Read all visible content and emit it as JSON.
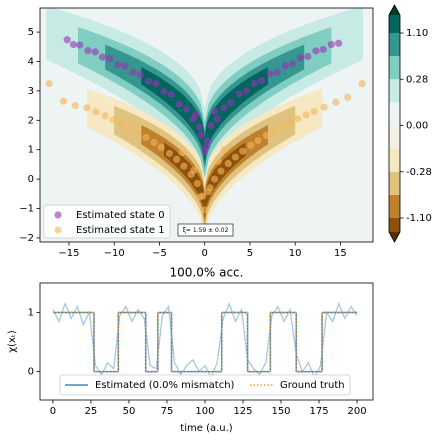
{
  "chart_data": [
    {
      "type": "scatter",
      "xlim": [
        -18.2,
        18.6
      ],
      "ylim": [
        -2.14,
        5.82
      ],
      "xticks": [
        {
          "value": -15,
          "label": "−15"
        },
        {
          "value": -10,
          "label": "−10"
        },
        {
          "value": -5,
          "label": "−5"
        },
        0,
        5,
        10,
        15
      ],
      "yticks": [
        {
          "value": -2,
          "label": "−2"
        },
        {
          "value": -1,
          "label": "−1"
        },
        0,
        1,
        2,
        3,
        4,
        5
      ],
      "legend": "lower left",
      "annotation": "ξ= 1.59 ± 0.02",
      "colorbar": {
        "ticks": [
          {
            "value": -1.1,
            "label": "-1.10"
          },
          {
            "value": -0.28,
            "label": "-0.28"
          },
          {
            "value": 0,
            "label": "0.00"
          },
          {
            "value": 0.28,
            "label": "0.28"
          },
          {
            "value": 1.1,
            "label": "1.10"
          }
        ],
        "colors": [
          "#8c510a",
          "#bf812d",
          "#dfc27d",
          "#f6e8c3",
          "#f5f0e6",
          "#eef3f3",
          "#c7eae5",
          "#80cdc1",
          "#35978f",
          "#01665e"
        ],
        "extend_colors": [
          "#543005",
          "#003c30"
        ]
      },
      "series": [
        {
          "name": "Estimated state 0",
          "color": "#9b30b8",
          "x": [
            -15.2,
            -14.5,
            -13.8,
            -12.9,
            -12.1,
            -11.3,
            -10.5,
            -9.6,
            -8.8,
            -7.9,
            -7.1,
            -6.2,
            -5.4,
            -4.5,
            -3.7,
            -2.8,
            -2.0,
            -1.3,
            -0.6,
            0,
            0.7,
            1.4,
            2.1,
            2.9,
            3.8,
            4.6,
            5.5,
            6.3,
            7.2,
            8.0,
            8.9,
            9.7,
            10.6,
            11.4,
            12.3,
            13.1,
            14.0,
            14.8,
            0.3,
            -0.4,
            0.2,
            -1.0,
            1.1
          ],
          "values": [
            4.74,
            4.58,
            4.56,
            4.37,
            4.33,
            4.15,
            4.1,
            3.9,
            3.85,
            3.63,
            3.56,
            3.33,
            3.25,
            2.98,
            2.88,
            2.55,
            2.38,
            2.04,
            1.78,
            0.95,
            1.82,
            2.05,
            2.42,
            2.6,
            2.9,
            3.0,
            3.26,
            3.35,
            3.58,
            3.64,
            3.86,
            3.92,
            4.12,
            4.17,
            4.36,
            4.41,
            4.58,
            4.62,
            1.3,
            1.5,
            1.1,
            2.2,
            2.3
          ]
        },
        {
          "name": "Estimated state 1",
          "color": "#f5b55a",
          "x": [
            -17.2,
            -15.6,
            -14.3,
            -13.0,
            -12.0,
            -11.0,
            -10.1,
            -9.2,
            -8.3,
            -7.4,
            -6.5,
            -5.6,
            -4.8,
            -3.9,
            -3.1,
            -2.3,
            -1.5,
            -0.8,
            -0.2,
            0.4,
            1.1,
            1.8,
            2.6,
            3.4,
            4.2,
            5.1,
            5.9,
            6.8,
            7.6,
            8.5,
            9.4,
            10.3,
            11.2,
            12.1,
            13.2,
            14.5,
            15.8,
            17.4,
            0,
            -0.5,
            0.6,
            -1.2,
            1.5,
            -2.5,
            2.2
          ],
          "values": [
            3.25,
            2.65,
            2.5,
            2.43,
            2.29,
            2.15,
            2.02,
            1.88,
            1.74,
            1.58,
            1.42,
            1.25,
            1.08,
            0.87,
            0.67,
            0.44,
            0.16,
            -0.15,
            -0.58,
            -0.43,
            0.0,
            0.27,
            0.53,
            0.75,
            0.95,
            1.15,
            1.31,
            1.48,
            1.62,
            1.77,
            1.91,
            2.05,
            2.18,
            2.3,
            2.45,
            2.62,
            2.78,
            3.25,
            -1.05,
            -0.6,
            -0.3,
            0.3,
            0.6,
            0.9,
            1.0
          ]
        }
      ]
    },
    {
      "type": "line",
      "title": "100.0% acc.",
      "xlabel": "time (a.u.)",
      "ylabel": "χ(xₜ)",
      "xlim": [
        -8.5,
        210.5
      ],
      "ylim": [
        -0.48,
        1.5
      ],
      "xticks": [
        0,
        25,
        50,
        75,
        100,
        125,
        150,
        175,
        200
      ],
      "yticks": [
        0,
        1
      ],
      "legend": "lower center",
      "series": [
        {
          "color": "#a6c8e0",
          "x": [
            0,
            4,
            8,
            12,
            16,
            20,
            24,
            28,
            32,
            36,
            40,
            44,
            48,
            52,
            56,
            60,
            64,
            68,
            72,
            76,
            80,
            84,
            88,
            92,
            96,
            100,
            104,
            108,
            112,
            116,
            120,
            124,
            128,
            132,
            136,
            140,
            144,
            148,
            152,
            156,
            160,
            164,
            168,
            172,
            176,
            180,
            184,
            188,
            192,
            196,
            200
          ],
          "values": [
            1.05,
            0.85,
            1.15,
            0.9,
            1.1,
            0.8,
            1.0,
            0.1,
            -0.05,
            0.15,
            0.05,
            0.95,
            1.1,
            0.85,
            1.05,
            0.9,
            0.1,
            0.05,
            0.95,
            1.1,
            0.15,
            -0.05,
            0.1,
            0.2,
            0.0,
            0.1,
            -0.1,
            0.15,
            0.9,
            1.15,
            0.85,
            1.05,
            0.2,
            0.05,
            -0.05,
            0.15,
            0.95,
            1.1,
            0.85,
            1.05,
            0.3,
            0.0,
            0.15,
            -0.1,
            0.1,
            1.0,
            0.85,
            1.15,
            0.9,
            1.1,
            0.95
          ]
        },
        {
          "name": "Estimated (0.0% mismatch)",
          "color": "#4a86a8",
          "style": "solid",
          "edges": [
            0,
            27,
            43,
            61,
            69,
            78,
            111,
            128,
            143,
            160,
            177,
            200
          ],
          "values": [
            1,
            0,
            1,
            0,
            1,
            0,
            1,
            0,
            1,
            0,
            1
          ]
        },
        {
          "name": "Ground truth",
          "color": "#f0a040",
          "style": "dotted",
          "edges": [
            0,
            27,
            43,
            61,
            69,
            78,
            111,
            128,
            143,
            160,
            177,
            200
          ],
          "values": [
            1,
            0,
            1,
            0,
            1,
            0,
            1,
            0,
            1,
            0,
            1
          ]
        }
      ]
    }
  ]
}
